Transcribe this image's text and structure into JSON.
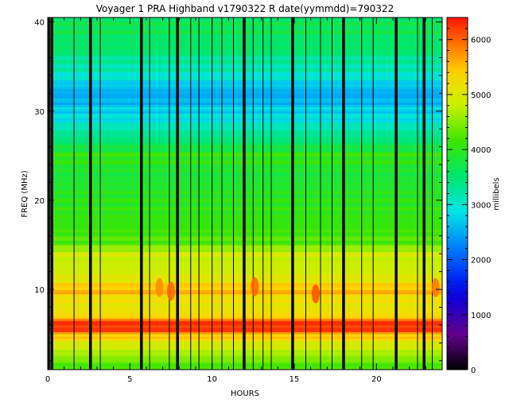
{
  "chart_data": {
    "type": "heatmap",
    "title": "Voyager 1 PRA Highband v1790322 R    date(yymmdd)=790322",
    "xlabel": "HOURS",
    "ylabel": "FREQ (MHz)",
    "xlim": [
      0,
      24
    ],
    "ylim": [
      1,
      40.5
    ],
    "xticks": [
      0,
      5,
      10,
      15,
      20
    ],
    "yticks": [
      10,
      20,
      30,
      40
    ],
    "colorbar": {
      "label": "millibels",
      "range": [
        0,
        6400
      ],
      "ticks": [
        0,
        1000,
        2000,
        3000,
        4000,
        5000,
        6000
      ]
    },
    "frequency_profile_mhz_millibels": [
      [
        1,
        4100
      ],
      [
        2,
        4400
      ],
      [
        3,
        4700
      ],
      [
        4,
        5000
      ],
      [
        5,
        5600
      ],
      [
        5.5,
        6200
      ],
      [
        6,
        6300
      ],
      [
        6.5,
        6100
      ],
      [
        7,
        5300
      ],
      [
        8,
        5100
      ],
      [
        9,
        5200
      ],
      [
        10,
        5600
      ],
      [
        11,
        5100
      ],
      [
        12,
        4900
      ],
      [
        13,
        4800
      ],
      [
        14,
        4900
      ],
      [
        14.5,
        4700
      ],
      [
        15,
        4300
      ],
      [
        17,
        4100
      ],
      [
        20,
        4000
      ],
      [
        23,
        3800
      ],
      [
        25,
        4100
      ],
      [
        26,
        3700
      ],
      [
        27,
        3400
      ],
      [
        28,
        3200
      ],
      [
        29,
        2900
      ],
      [
        30,
        2800
      ],
      [
        31,
        2600
      ],
      [
        32,
        2500
      ],
      [
        33,
        2700
      ],
      [
        34,
        3000
      ],
      [
        35,
        3200
      ],
      [
        36,
        3300
      ],
      [
        37,
        3600
      ],
      [
        38,
        3500
      ],
      [
        39,
        3700
      ],
      [
        40,
        3600
      ],
      [
        40.5,
        3700
      ]
    ],
    "data_gaps_hours": [
      0.05,
      0.25,
      1.6,
      2.6,
      3.2,
      5.7,
      6.2,
      7.4,
      7.9,
      8.7,
      9.2,
      10.0,
      10.6,
      11.3,
      11.95,
      12.5,
      13.1,
      13.6,
      14.9,
      15.7,
      16.6,
      17.3,
      18.0,
      19.1,
      19.8,
      21.2,
      22.5,
      22.9,
      23.4
    ],
    "thick_gaps_hours": [
      0.05,
      0.25,
      2.6,
      5.7,
      7.9,
      11.95,
      14.9,
      18.0,
      21.2,
      22.9
    ],
    "bursts": [
      {
        "hour": 6.8,
        "mhz": 10.2,
        "millibels": 5800
      },
      {
        "hour": 7.5,
        "mhz": 9.8,
        "millibels": 6000
      },
      {
        "hour": 12.6,
        "mhz": 10.3,
        "millibels": 6000
      },
      {
        "hour": 16.3,
        "mhz": 9.5,
        "millibels": 6100
      },
      {
        "hour": 23.6,
        "mhz": 10.2,
        "millibels": 5900
      }
    ]
  }
}
